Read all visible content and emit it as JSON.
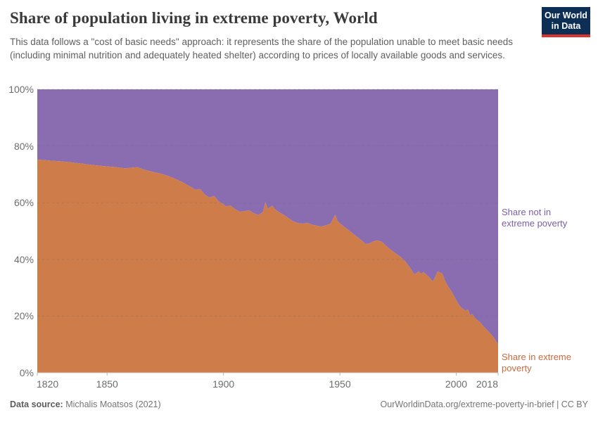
{
  "header": {
    "title": "Share of population living in extreme poverty, World",
    "subtitle": "This data follows a \"cost of basic needs\" approach: it represents the share of the population unable to meet basic needs (including minimal nutrition and adequately heated shelter) according to prices of locally available goods and services.",
    "logo": {
      "line1": "Our World",
      "line2": "in Data"
    }
  },
  "annotations": {
    "not_in_poverty": "Share not in extreme poverty",
    "in_poverty": "Share in extreme poverty"
  },
  "footer": {
    "source_label": "Data source:",
    "source_value": " Michalis Moatsos (2021)",
    "credit": "OurWorldinData.org/extreme-poverty-in-brief | CC BY"
  },
  "colors": {
    "poverty_fill": "#cd7c4a",
    "not_poverty_fill": "#8a6cb0",
    "poverty_label": "#c96a3e",
    "not_poverty_label": "#7b5ea8",
    "gridline": "#6f6f6f",
    "axis_line": "#c8c8c8",
    "tick_text": "#6d6d6d",
    "logo_bg": "#0d2e55",
    "logo_bar": "#d8352e"
  },
  "chart_data": {
    "type": "area",
    "stacked": true,
    "title": "Share of population living in extreme poverty, World",
    "x_range": [
      1820,
      2018
    ],
    "y_range": [
      0,
      100
    ],
    "grid": true,
    "y_ticks": [
      0,
      20,
      40,
      60,
      80,
      100
    ],
    "y_tick_suffix": "%",
    "x_ticks": [
      1820,
      1850,
      1900,
      1950,
      2000,
      2018
    ],
    "legend_position": "right-annotations",
    "series": [
      {
        "name": "Share in extreme poverty",
        "role": "bottom",
        "points": [
          [
            1820,
            75.2
          ],
          [
            1825,
            74.9
          ],
          [
            1830,
            74.6
          ],
          [
            1835,
            74.2
          ],
          [
            1840,
            73.7
          ],
          [
            1845,
            73.2
          ],
          [
            1850,
            72.8
          ],
          [
            1853,
            72.6
          ],
          [
            1856,
            72.3
          ],
          [
            1858,
            72.1
          ],
          [
            1861,
            72.4
          ],
          [
            1863,
            72.5
          ],
          [
            1865,
            71.9
          ],
          [
            1867,
            71.4
          ],
          [
            1870,
            70.8
          ],
          [
            1873,
            70.3
          ],
          [
            1876,
            69.5
          ],
          [
            1879,
            68.5
          ],
          [
            1882,
            67.4
          ],
          [
            1885,
            66.0
          ],
          [
            1888,
            64.6
          ],
          [
            1890,
            64.8
          ],
          [
            1892,
            62.8
          ],
          [
            1894,
            61.8
          ],
          [
            1896,
            62.4
          ],
          [
            1898,
            60.4
          ],
          [
            1900,
            59.5
          ],
          [
            1901,
            58.7
          ],
          [
            1903,
            59.0
          ],
          [
            1905,
            57.7
          ],
          [
            1907,
            56.8
          ],
          [
            1909,
            57.0
          ],
          [
            1911,
            57.3
          ],
          [
            1913,
            56.3
          ],
          [
            1915,
            55.6
          ],
          [
            1917,
            56.8
          ],
          [
            1918,
            60.3
          ],
          [
            1919,
            57.8
          ],
          [
            1921,
            59.0
          ],
          [
            1922,
            57.8
          ],
          [
            1924,
            56.6
          ],
          [
            1926,
            55.6
          ],
          [
            1928,
            54.5
          ],
          [
            1930,
            53.4
          ],
          [
            1932,
            52.8
          ],
          [
            1934,
            52.6
          ],
          [
            1936,
            52.9
          ],
          [
            1938,
            52.2
          ],
          [
            1940,
            51.9
          ],
          [
            1942,
            51.6
          ],
          [
            1944,
            52.0
          ],
          [
            1946,
            52.6
          ],
          [
            1947,
            54.2
          ],
          [
            1948,
            55.8
          ],
          [
            1949,
            53.6
          ],
          [
            1950,
            52.7
          ],
          [
            1952,
            51.4
          ],
          [
            1954,
            50.2
          ],
          [
            1956,
            48.8
          ],
          [
            1958,
            47.6
          ],
          [
            1960,
            46.2
          ],
          [
            1961,
            45.4
          ],
          [
            1963,
            45.7
          ],
          [
            1964,
            46.2
          ],
          [
            1966,
            46.7
          ],
          [
            1968,
            46.2
          ],
          [
            1970,
            44.7
          ],
          [
            1972,
            43.3
          ],
          [
            1974,
            42.1
          ],
          [
            1976,
            40.9
          ],
          [
            1978,
            39.4
          ],
          [
            1980,
            37.2
          ],
          [
            1982,
            34.7
          ],
          [
            1984,
            35.8
          ],
          [
            1985,
            34.9
          ],
          [
            1986,
            35.5
          ],
          [
            1988,
            34.0
          ],
          [
            1990,
            32.2
          ],
          [
            1992,
            35.7
          ],
          [
            1994,
            35.0
          ],
          [
            1995,
            32.8
          ],
          [
            1996,
            31.2
          ],
          [
            1998,
            28.6
          ],
          [
            2000,
            25.6
          ],
          [
            2001,
            24.2
          ],
          [
            2002,
            23.1
          ],
          [
            2004,
            21.8
          ],
          [
            2005,
            22.4
          ],
          [
            2006,
            20.3
          ],
          [
            2007,
            20.7
          ],
          [
            2008,
            19.3
          ],
          [
            2010,
            18.0
          ],
          [
            2012,
            16.1
          ],
          [
            2014,
            14.4
          ],
          [
            2016,
            12.6
          ],
          [
            2018,
            10.1
          ]
        ]
      },
      {
        "name": "Share not in extreme poverty",
        "role": "remainder-to-100",
        "points": "computed as 100 minus bottom series"
      }
    ]
  }
}
